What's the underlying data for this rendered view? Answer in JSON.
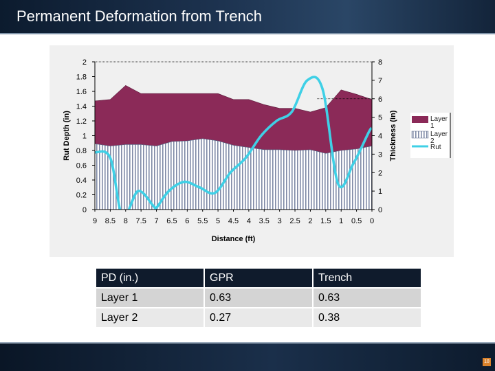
{
  "title": "Permanent Deformation from Trench",
  "page_number": "18",
  "colors": {
    "layer1": "#8b2a58",
    "layer2_stripe": "#7f8aa6",
    "rut": "#3fd0e6",
    "header": "#0f1b2c"
  },
  "chart_data": {
    "type": "area",
    "xlabel": "Distance (ft)",
    "ylabel_left": "Rut Depth (in)",
    "ylabel_right": "Thickness (in)",
    "x_reversed": true,
    "xlim": [
      0,
      9
    ],
    "ylim_left": [
      0,
      2
    ],
    "ylim_right": [
      0,
      8
    ],
    "x_ticks": [
      "9",
      "8.5",
      "8",
      "7.5",
      "7",
      "6.5",
      "6",
      "5.5",
      "5",
      "4.5",
      "4",
      "3.5",
      "3",
      "2.5",
      "2",
      "1.5",
      "1",
      "0.5",
      "0"
    ],
    "y_ticks_left": [
      "0",
      "0.2",
      "0.4",
      "0.6",
      "0.8",
      "1",
      "1.2",
      "1.4",
      "1.6",
      "1.8",
      "2"
    ],
    "y_ticks_right": [
      "0",
      "1",
      "2",
      "3",
      "4",
      "5",
      "6",
      "7",
      "8"
    ],
    "legend": [
      "Layer 1",
      "Layer 2",
      "Rut"
    ],
    "legend_position": "right",
    "series": [
      {
        "name": "Layer 2",
        "axis": "left",
        "x": [
          9,
          8.5,
          8,
          7.5,
          7,
          6.5,
          6,
          5.5,
          5,
          4.5,
          4,
          3.5,
          3,
          2.5,
          2,
          1.5,
          1,
          0.5,
          0
        ],
        "values": [
          0.89,
          0.86,
          0.88,
          0.88,
          0.86,
          0.92,
          0.93,
          0.96,
          0.93,
          0.87,
          0.84,
          0.81,
          0.81,
          0.8,
          0.81,
          0.76,
          0.8,
          0.82,
          0.86
        ]
      },
      {
        "name": "Layer 1",
        "axis": "left",
        "x": [
          9,
          8.5,
          8,
          7.5,
          7,
          6.5,
          6,
          5.5,
          5,
          4.5,
          4,
          3.5,
          3,
          2.5,
          2,
          1.5,
          1,
          0.5,
          0
        ],
        "values": [
          1.47,
          1.49,
          1.68,
          1.57,
          1.57,
          1.57,
          1.57,
          1.57,
          1.57,
          1.49,
          1.49,
          1.42,
          1.37,
          1.37,
          1.32,
          1.38,
          1.62,
          1.56,
          1.49
        ]
      },
      {
        "name": "Rut",
        "axis": "right",
        "x": [
          9,
          8.5,
          8.1,
          7.6,
          7.1,
          7.0,
          6.6,
          6.1,
          5.6,
          5.1,
          4.6,
          4.1,
          3.6,
          3.1,
          2.6,
          2.1,
          1.6,
          1.1,
          0.6,
          0.1,
          0
        ],
        "values": [
          3.1,
          2.8,
          -0.4,
          1.0,
          0.2,
          0.1,
          1.0,
          1.5,
          1.2,
          0.9,
          2.0,
          2.8,
          4.0,
          4.8,
          5.3,
          7.0,
          6.5,
          1.4,
          2.5,
          4.2,
          4.4
        ]
      }
    ]
  },
  "table": {
    "headers": [
      "PD (in.)",
      "GPR",
      "Trench"
    ],
    "rows": [
      [
        "Layer 1",
        "0.63",
        "0.63"
      ],
      [
        "Layer 2",
        "0.27",
        "0.38"
      ]
    ]
  }
}
